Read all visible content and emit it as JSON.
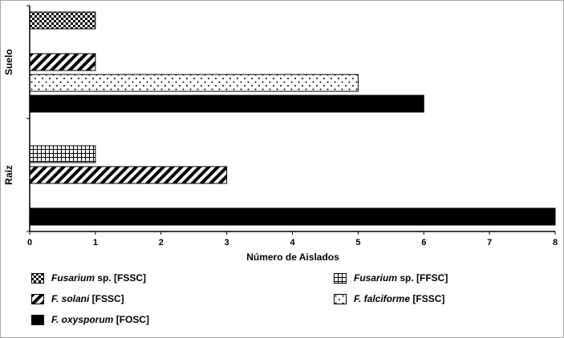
{
  "figure": {
    "background": "#ffffff",
    "border_color": "#a6a6a6"
  },
  "chart_data": {
    "type": "bar",
    "orientation": "horizontal",
    "title": "",
    "xlabel": "Número de Aislados",
    "ylabel": "",
    "xlim": [
      0,
      8
    ],
    "xticks": [
      "0",
      "1",
      "2",
      "3",
      "4",
      "5",
      "6",
      "7",
      "8"
    ],
    "grid": false,
    "legend_position": "bottom",
    "categories": [
      "Suelo",
      "Raíz"
    ],
    "series": [
      {
        "name": "Fusarium sp. [FSSC]",
        "label_parts": [
          {
            "text": "Fusarium",
            "italic": true
          },
          {
            "text": " sp. [FSSC]",
            "italic": false
          }
        ],
        "pattern": "checker",
        "values": [
          1,
          0
        ],
        "legend_column": 1,
        "legend_row": 0
      },
      {
        "name": "Fusarium sp. [FFSC]",
        "label_parts": [
          {
            "text": "Fusarium",
            "italic": true
          },
          {
            "text": " sp. [FFSC]",
            "italic": false
          }
        ],
        "pattern": "grid",
        "values": [
          0,
          1
        ],
        "legend_column": 2,
        "legend_row": 0
      },
      {
        "name": "F. solani [FSSC]",
        "label_parts": [
          {
            "text": "F. solani",
            "italic": true
          },
          {
            "text": " [FSSC]",
            "italic": false
          }
        ],
        "pattern": "diagonal",
        "values": [
          1,
          3
        ],
        "legend_column": 1,
        "legend_row": 1
      },
      {
        "name": "F. falciforme [FSSC]",
        "label_parts": [
          {
            "text": "F. falciforme",
            "italic": true
          },
          {
            "text": " [FSSC]",
            "italic": false
          }
        ],
        "pattern": "dots",
        "values": [
          5,
          0
        ],
        "legend_column": 2,
        "legend_row": 1
      },
      {
        "name": "F. oxysporum [FOSC]",
        "label_parts": [
          {
            "text": "F. oxysporum",
            "italic": true
          },
          {
            "text": " [FOSC]",
            "italic": false
          }
        ],
        "pattern": "solid",
        "values": [
          6,
          8
        ],
        "legend_column": 1,
        "legend_row": 2
      }
    ],
    "colors": {
      "bar_fill": "#000000",
      "bar_stroke": "#000000",
      "axis": "#000000",
      "text": "#000000"
    }
  }
}
